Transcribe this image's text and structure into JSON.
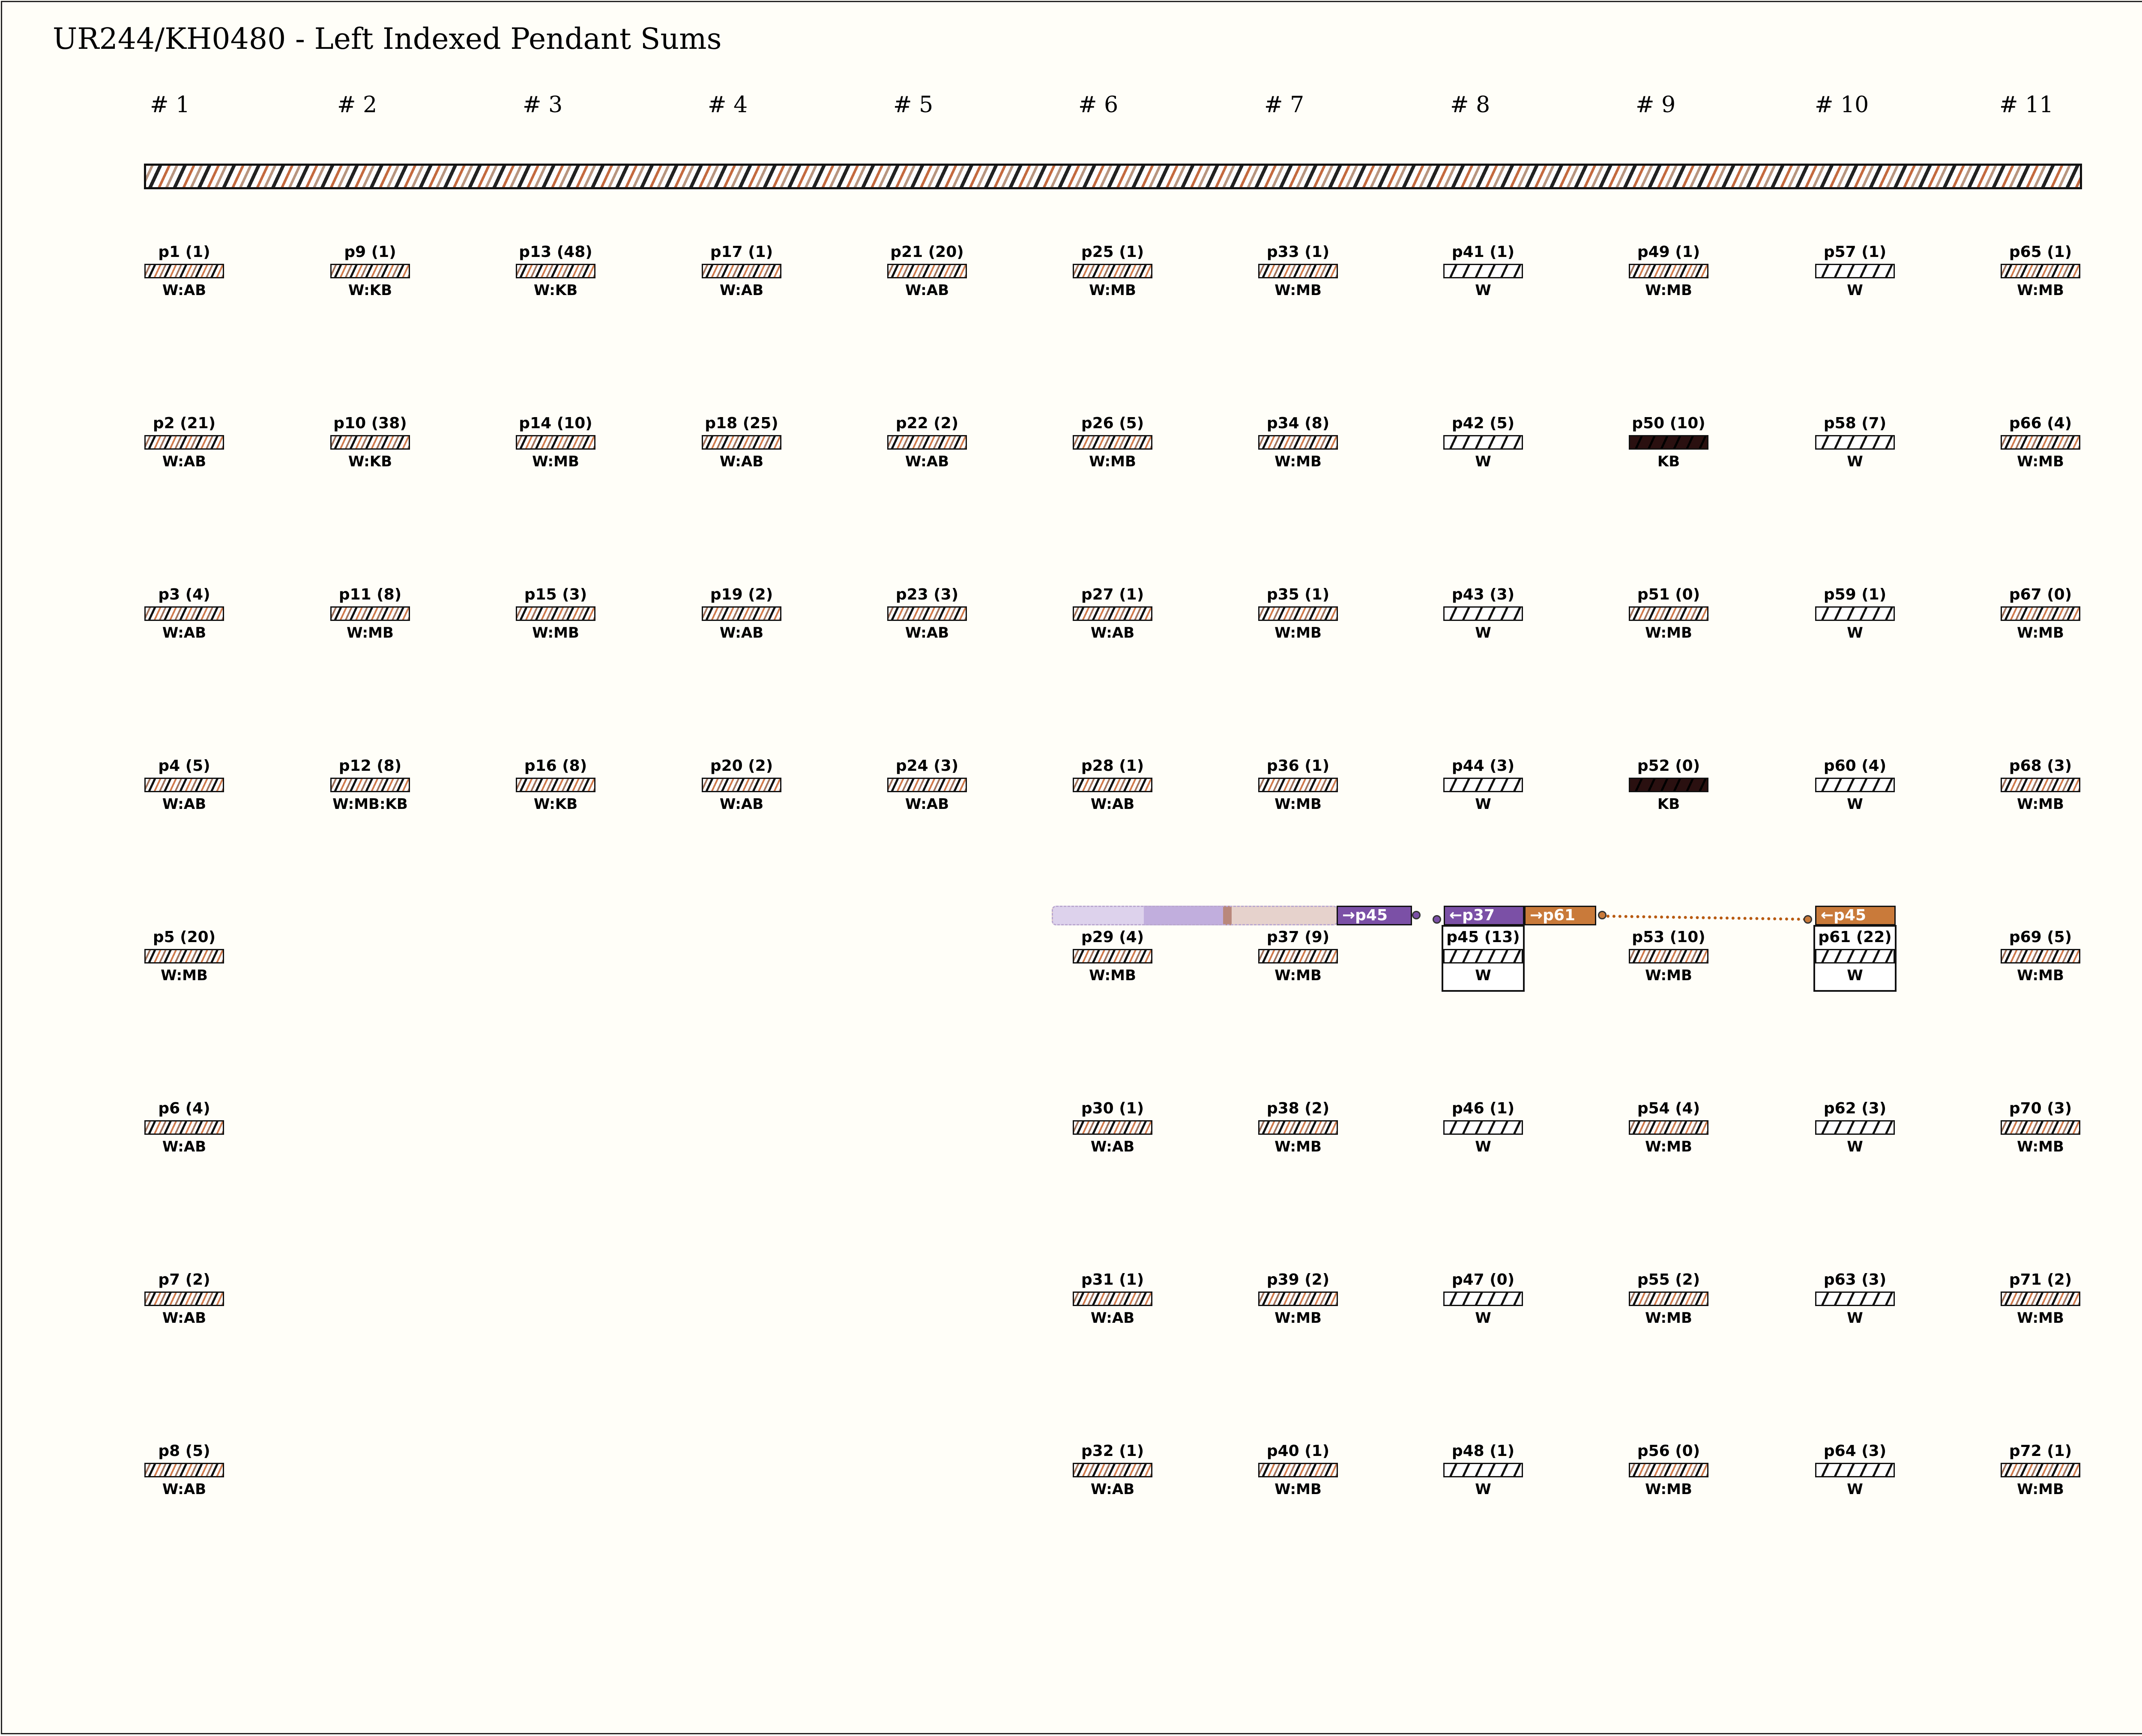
{
  "title": "UR244/KH0480 - Left Indexed Pendant Sums",
  "groups": [
    "# 1",
    "# 2",
    "# 3",
    "# 4",
    "# 5",
    "# 6",
    "# 7",
    "# 8",
    "# 9",
    "# 10",
    "# 11"
  ],
  "pendants": [
    {
      "label": "p1 (1)",
      "color": "W:AB",
      "col": 0,
      "row": 0,
      "pattern": "mixed"
    },
    {
      "label": "p2 (21)",
      "color": "W:AB",
      "col": 0,
      "row": 1,
      "pattern": "mixed"
    },
    {
      "label": "p3 (4)",
      "color": "W:AB",
      "col": 0,
      "row": 2,
      "pattern": "mixed"
    },
    {
      "label": "p4 (5)",
      "color": "W:AB",
      "col": 0,
      "row": 3,
      "pattern": "mixed"
    },
    {
      "label": "p5 (20)",
      "color": "W:MB",
      "col": 0,
      "row": 4,
      "pattern": "mixed"
    },
    {
      "label": "p6 (4)",
      "color": "W:AB",
      "col": 0,
      "row": 5,
      "pattern": "mixed"
    },
    {
      "label": "p7 (2)",
      "color": "W:AB",
      "col": 0,
      "row": 6,
      "pattern": "mixed"
    },
    {
      "label": "p8 (5)",
      "color": "W:AB",
      "col": 0,
      "row": 7,
      "pattern": "mixed"
    },
    {
      "label": "p9 (1)",
      "color": "W:KB",
      "col": 1,
      "row": 0,
      "pattern": "mixed"
    },
    {
      "label": "p10 (38)",
      "color": "W:KB",
      "col": 1,
      "row": 1,
      "pattern": "mixed"
    },
    {
      "label": "p11 (8)",
      "color": "W:MB",
      "col": 1,
      "row": 2,
      "pattern": "mixed"
    },
    {
      "label": "p12 (8)",
      "color": "W:MB:KB",
      "col": 1,
      "row": 3,
      "pattern": "mixed"
    },
    {
      "label": "p13 (48)",
      "color": "W:KB",
      "col": 2,
      "row": 0,
      "pattern": "mixed"
    },
    {
      "label": "p14 (10)",
      "color": "W:MB",
      "col": 2,
      "row": 1,
      "pattern": "mixed"
    },
    {
      "label": "p15 (3)",
      "color": "W:MB",
      "col": 2,
      "row": 2,
      "pattern": "mixed"
    },
    {
      "label": "p16 (8)",
      "color": "W:KB",
      "col": 2,
      "row": 3,
      "pattern": "mixed"
    },
    {
      "label": "p17 (1)",
      "color": "W:AB",
      "col": 3,
      "row": 0,
      "pattern": "mixed"
    },
    {
      "label": "p18 (25)",
      "color": "W:AB",
      "col": 3,
      "row": 1,
      "pattern": "mixed"
    },
    {
      "label": "p19 (2)",
      "color": "W:AB",
      "col": 3,
      "row": 2,
      "pattern": "mixed"
    },
    {
      "label": "p20 (2)",
      "color": "W:AB",
      "col": 3,
      "row": 3,
      "pattern": "mixed"
    },
    {
      "label": "p21 (20)",
      "color": "W:AB",
      "col": 4,
      "row": 0,
      "pattern": "mixed"
    },
    {
      "label": "p22 (2)",
      "color": "W:AB",
      "col": 4,
      "row": 1,
      "pattern": "mixed"
    },
    {
      "label": "p23 (3)",
      "color": "W:AB",
      "col": 4,
      "row": 2,
      "pattern": "mixed"
    },
    {
      "label": "p24 (3)",
      "color": "W:AB",
      "col": 4,
      "row": 3,
      "pattern": "mixed"
    },
    {
      "label": "p25 (1)",
      "color": "W:MB",
      "col": 5,
      "row": 0,
      "pattern": "mixed"
    },
    {
      "label": "p26 (5)",
      "color": "W:MB",
      "col": 5,
      "row": 1,
      "pattern": "mixed"
    },
    {
      "label": "p27 (1)",
      "color": "W:AB",
      "col": 5,
      "row": 2,
      "pattern": "mixed"
    },
    {
      "label": "p28 (1)",
      "color": "W:AB",
      "col": 5,
      "row": 3,
      "pattern": "mixed"
    },
    {
      "label": "p29 (4)",
      "color": "W:MB",
      "col": 5,
      "row": 4,
      "pattern": "mixed"
    },
    {
      "label": "p30 (1)",
      "color": "W:AB",
      "col": 5,
      "row": 5,
      "pattern": "mixed"
    },
    {
      "label": "p31 (1)",
      "color": "W:AB",
      "col": 5,
      "row": 6,
      "pattern": "mixed"
    },
    {
      "label": "p32 (1)",
      "color": "W:AB",
      "col": 5,
      "row": 7,
      "pattern": "mixed"
    },
    {
      "label": "p33 (1)",
      "color": "W:MB",
      "col": 6,
      "row": 0,
      "pattern": "mixed"
    },
    {
      "label": "p34 (8)",
      "color": "W:MB",
      "col": 6,
      "row": 1,
      "pattern": "mixed"
    },
    {
      "label": "p35 (1)",
      "color": "W:MB",
      "col": 6,
      "row": 2,
      "pattern": "mixed"
    },
    {
      "label": "p36 (1)",
      "color": "W:MB",
      "col": 6,
      "row": 3,
      "pattern": "mixed"
    },
    {
      "label": "p37 (9)",
      "color": "W:MB",
      "col": 6,
      "row": 4,
      "pattern": "mixed"
    },
    {
      "label": "p38 (2)",
      "color": "W:MB",
      "col": 6,
      "row": 5,
      "pattern": "mixed"
    },
    {
      "label": "p39 (2)",
      "color": "W:MB",
      "col": 6,
      "row": 6,
      "pattern": "mixed"
    },
    {
      "label": "p40 (1)",
      "color": "W:MB",
      "col": 6,
      "row": 7,
      "pattern": "mixed"
    },
    {
      "label": "p41 (1)",
      "color": "W",
      "col": 7,
      "row": 0,
      "pattern": "white"
    },
    {
      "label": "p42 (5)",
      "color": "W",
      "col": 7,
      "row": 1,
      "pattern": "white"
    },
    {
      "label": "p43 (3)",
      "color": "W",
      "col": 7,
      "row": 2,
      "pattern": "white"
    },
    {
      "label": "p44 (3)",
      "color": "W",
      "col": 7,
      "row": 3,
      "pattern": "white"
    },
    {
      "label": "p45 (13)",
      "color": "W",
      "col": 7,
      "row": 4,
      "pattern": "white",
      "boxed": true
    },
    {
      "label": "p46 (1)",
      "color": "W",
      "col": 7,
      "row": 5,
      "pattern": "white"
    },
    {
      "label": "p47 (0)",
      "color": "W",
      "col": 7,
      "row": 6,
      "pattern": "white"
    },
    {
      "label": "p48 (1)",
      "color": "W",
      "col": 7,
      "row": 7,
      "pattern": "white"
    },
    {
      "label": "p49 (1)",
      "color": "W:MB",
      "col": 8,
      "row": 0,
      "pattern": "mixed"
    },
    {
      "label": "p50 (10)",
      "color": "KB",
      "col": 8,
      "row": 1,
      "pattern": "dark"
    },
    {
      "label": "p51 (0)",
      "color": "W:MB",
      "col": 8,
      "row": 2,
      "pattern": "mixed"
    },
    {
      "label": "p52 (0)",
      "color": "KB",
      "col": 8,
      "row": 3,
      "pattern": "dark"
    },
    {
      "label": "p53 (10)",
      "color": "W:MB",
      "col": 8,
      "row": 4,
      "pattern": "mixed"
    },
    {
      "label": "p54 (4)",
      "color": "W:MB",
      "col": 8,
      "row": 5,
      "pattern": "mixed"
    },
    {
      "label": "p55 (2)",
      "color": "W:MB",
      "col": 8,
      "row": 6,
      "pattern": "mixed"
    },
    {
      "label": "p56 (0)",
      "color": "W:MB",
      "col": 8,
      "row": 7,
      "pattern": "mixed"
    },
    {
      "label": "p57 (1)",
      "color": "W",
      "col": 9,
      "row": 0,
      "pattern": "white"
    },
    {
      "label": "p58 (7)",
      "color": "W",
      "col": 9,
      "row": 1,
      "pattern": "white"
    },
    {
      "label": "p59 (1)",
      "color": "W",
      "col": 9,
      "row": 2,
      "pattern": "white"
    },
    {
      "label": "p60 (4)",
      "color": "W",
      "col": 9,
      "row": 3,
      "pattern": "white"
    },
    {
      "label": "p61 (22)",
      "color": "W",
      "col": 9,
      "row": 4,
      "pattern": "white",
      "boxed": true
    },
    {
      "label": "p62 (3)",
      "color": "W",
      "col": 9,
      "row": 5,
      "pattern": "white"
    },
    {
      "label": "p63 (3)",
      "color": "W",
      "col": 9,
      "row": 6,
      "pattern": "white"
    },
    {
      "label": "p64 (3)",
      "color": "W",
      "col": 9,
      "row": 7,
      "pattern": "white"
    },
    {
      "label": "p65 (1)",
      "color": "W:MB",
      "col": 10,
      "row": 0,
      "pattern": "mixed"
    },
    {
      "label": "p66 (4)",
      "color": "W:MB",
      "col": 10,
      "row": 1,
      "pattern": "mixed"
    },
    {
      "label": "p67 (0)",
      "color": "W:MB",
      "col": 10,
      "row": 2,
      "pattern": "mixed"
    },
    {
      "label": "p68 (3)",
      "color": "W:MB",
      "col": 10,
      "row": 3,
      "pattern": "mixed"
    },
    {
      "label": "p69 (5)",
      "color": "W:MB",
      "col": 10,
      "row": 4,
      "pattern": "mixed"
    },
    {
      "label": "p70 (3)",
      "color": "W:MB",
      "col": 10,
      "row": 5,
      "pattern": "mixed"
    },
    {
      "label": "p71 (2)",
      "color": "W:MB",
      "col": 10,
      "row": 6,
      "pattern": "mixed"
    },
    {
      "label": "p72 (1)",
      "color": "W:MB",
      "col": 10,
      "row": 7,
      "pattern": "mixed"
    }
  ],
  "links": {
    "tag_to_p45": "→p45",
    "tag_from_p37": "←p37",
    "tag_to_p61": "→p61",
    "tag_from_p45": "←p45"
  },
  "colors": {
    "purple": "#7b50a6",
    "orange": "#c97a3a",
    "dotted": "#b85a10"
  }
}
